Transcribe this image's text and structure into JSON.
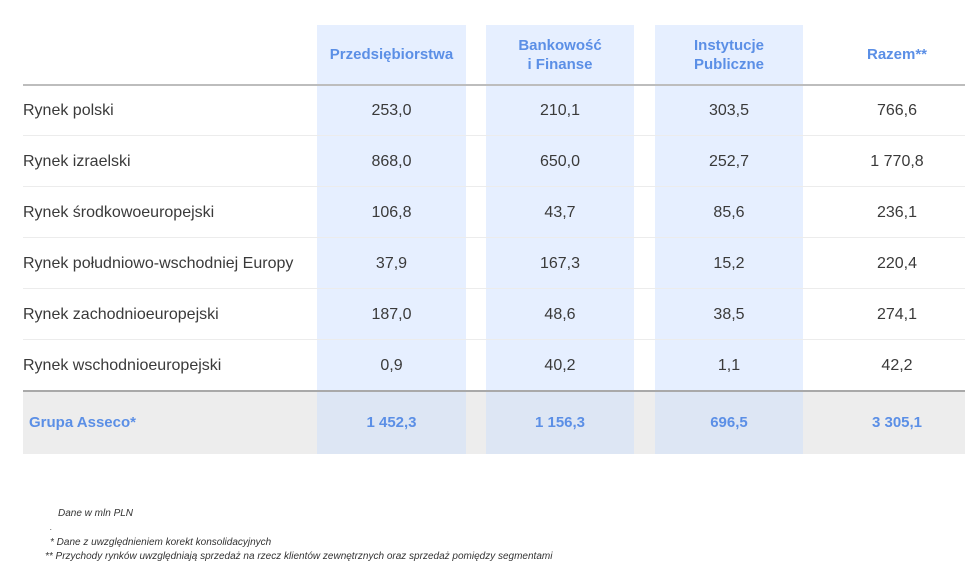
{
  "headers": {
    "col1": "Przedsiębiorstwa",
    "col2_line1": "Bankowość",
    "col2_line2": "i Finanse",
    "col3_line1": "Instytucje",
    "col3_line2": "Publiczne",
    "col4": "Razem**"
  },
  "rows": [
    {
      "label": "Rynek polski",
      "v1": "253,0",
      "v2": "210,1",
      "v3": "303,5",
      "v4": "766,6"
    },
    {
      "label": "Rynek izraelski",
      "v1": "868,0",
      "v2": "650,0",
      "v3": "252,7",
      "v4": "1 770,8"
    },
    {
      "label": "Rynek środkowoeuropejski",
      "v1": "106,8",
      "v2": "43,7",
      "v3": "85,6",
      "v4": "236,1"
    },
    {
      "label": "Rynek południowo-wschodniej Europy",
      "v1": "37,9",
      "v2": "167,3",
      "v3": "15,2",
      "v4": "220,4"
    },
    {
      "label": "Rynek zachodnioeuropejski",
      "v1": "187,0",
      "v2": "48,6",
      "v3": "38,5",
      "v4": "274,1"
    },
    {
      "label": "Rynek wschodnioeuropejski",
      "v1": "0,9",
      "v2": "40,2",
      "v3": "1,1",
      "v4": "42,2"
    }
  ],
  "total": {
    "label": "Grupa Asseco*",
    "v1": "1 452,3",
    "v2": "1 156,3",
    "v3": "696,5",
    "v4": "3 305,1"
  },
  "notes": {
    "units": "Dane w mln PLN",
    "dot": ".",
    "note1": "* Dane z uwzględnieniem korekt konsolidacyjnych",
    "note2": "** Przychody rynków uwzględniają sprzedaż na rzecz klientów zewnętrznych oraz sprzedaż pomiędzy segmentami"
  },
  "colors": {
    "accent": "#5b8fe6",
    "column_highlight": "#e6efff",
    "total_row": "#ededed"
  }
}
